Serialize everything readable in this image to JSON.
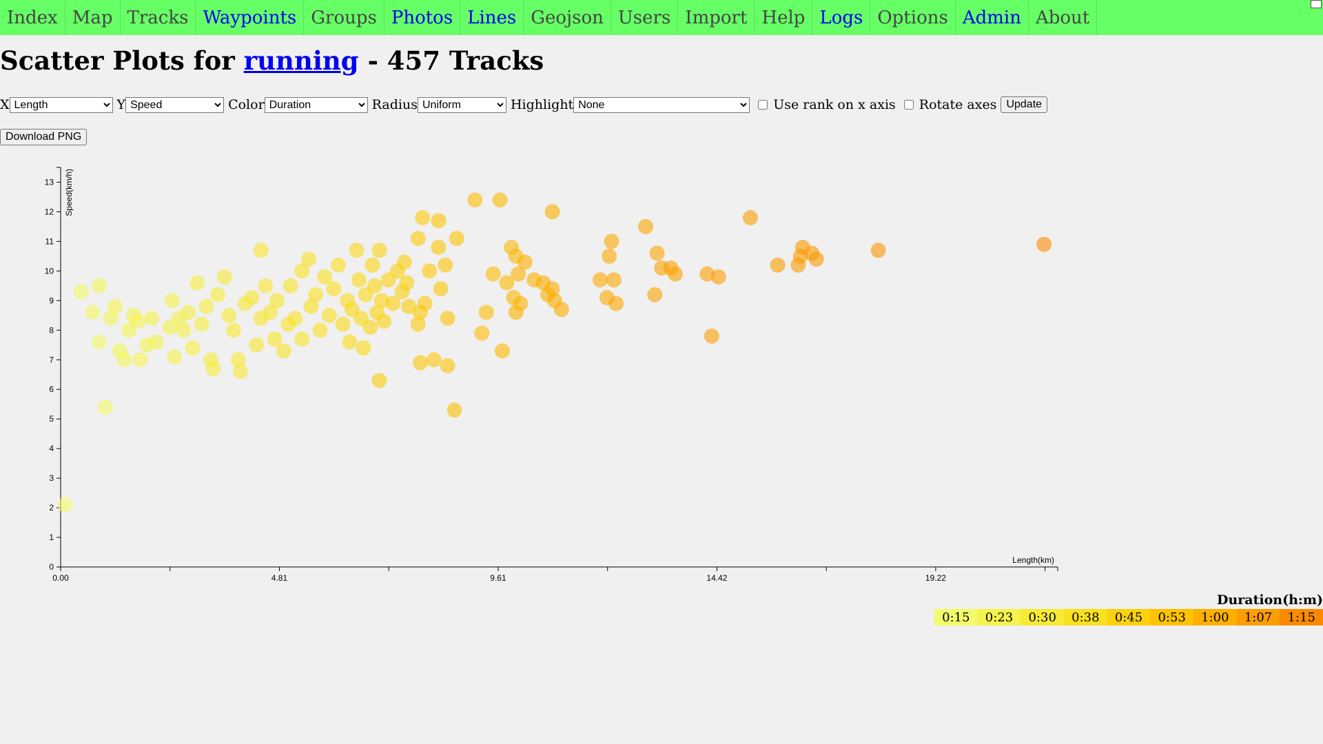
{
  "nav": {
    "items": [
      {
        "label": "Index",
        "link": false
      },
      {
        "label": "Map",
        "link": false
      },
      {
        "label": "Tracks",
        "link": false
      },
      {
        "label": "Waypoints",
        "link": true
      },
      {
        "label": "Groups",
        "link": false
      },
      {
        "label": "Photos",
        "link": true
      },
      {
        "label": "Lines",
        "link": true
      },
      {
        "label": "Geojson",
        "link": false
      },
      {
        "label": "Users",
        "link": false
      },
      {
        "label": "Import",
        "link": false
      },
      {
        "label": "Help",
        "link": false
      },
      {
        "label": "Logs",
        "link": true
      },
      {
        "label": "Options",
        "link": false
      },
      {
        "label": "Admin",
        "link": true
      },
      {
        "label": "About",
        "link": false
      }
    ]
  },
  "header": {
    "title_prefix": "Scatter Plots for ",
    "title_link": "running",
    "title_suffix": " - 457 Tracks"
  },
  "controls": {
    "x_label": "X",
    "x_value": "Length",
    "y_label": "Y",
    "y_value": "Speed",
    "color_label": "Color",
    "color_value": "Duration",
    "radius_label": "Radius",
    "radius_value": "Uniform",
    "highlight_label": "Highlight",
    "highlight_value": "None",
    "rank_label": "Use rank on x axis",
    "rotate_label": "Rotate axes",
    "update_label": "Update",
    "download_label": "Download PNG"
  },
  "legend": {
    "title": "Duration(h:m)",
    "stops": [
      {
        "label": "0:15",
        "color": "#f3fb6a"
      },
      {
        "label": "0:23",
        "color": "#f5f34e"
      },
      {
        "label": "0:30",
        "color": "#f7ea33"
      },
      {
        "label": "0:38",
        "color": "#fae01f"
      },
      {
        "label": "0:45",
        "color": "#fcd20d"
      },
      {
        "label": "0:53",
        "color": "#fdc202"
      },
      {
        "label": "1:00",
        "color": "#fdb000"
      },
      {
        "label": "1:07",
        "color": "#fc9d00"
      },
      {
        "label": "1:15",
        "color": "#fb8a02"
      }
    ]
  },
  "chart_data": {
    "type": "scatter",
    "xlabel": "Length(km)",
    "ylabel": "Speed(km/h)",
    "xlim": [
      0,
      21.9
    ],
    "ylim": [
      0,
      13.5
    ],
    "x_ticks": [
      "0.00",
      "4.81",
      "9.61",
      "14.42",
      "19.22"
    ],
    "y_ticks": [
      0,
      1,
      2,
      3,
      4,
      5,
      6,
      7,
      8,
      9,
      10,
      11,
      12,
      13
    ],
    "color_by": "Duration",
    "duration_range_min": [
      15,
      75
    ],
    "points": [
      {
        "x": 0.1,
        "y": 2.1,
        "d": 15
      },
      {
        "x": 0.45,
        "y": 9.3,
        "d": 18
      },
      {
        "x": 0.7,
        "y": 8.6,
        "d": 18
      },
      {
        "x": 0.85,
        "y": 9.5,
        "d": 20
      },
      {
        "x": 0.85,
        "y": 7.6,
        "d": 17
      },
      {
        "x": 0.98,
        "y": 5.4,
        "d": 18
      },
      {
        "x": 1.1,
        "y": 8.4,
        "d": 20
      },
      {
        "x": 1.2,
        "y": 8.8,
        "d": 22
      },
      {
        "x": 1.3,
        "y": 7.3,
        "d": 20
      },
      {
        "x": 1.4,
        "y": 7.0,
        "d": 20
      },
      {
        "x": 1.5,
        "y": 8.0,
        "d": 21
      },
      {
        "x": 1.6,
        "y": 8.5,
        "d": 22
      },
      {
        "x": 1.7,
        "y": 8.3,
        "d": 22
      },
      {
        "x": 1.75,
        "y": 7.0,
        "d": 21
      },
      {
        "x": 1.9,
        "y": 7.5,
        "d": 22
      },
      {
        "x": 2.0,
        "y": 8.4,
        "d": 23
      },
      {
        "x": 2.1,
        "y": 7.6,
        "d": 23
      },
      {
        "x": 2.4,
        "y": 8.1,
        "d": 24
      },
      {
        "x": 2.45,
        "y": 9.0,
        "d": 24
      },
      {
        "x": 2.5,
        "y": 7.1,
        "d": 24
      },
      {
        "x": 2.6,
        "y": 8.4,
        "d": 25
      },
      {
        "x": 2.7,
        "y": 8.0,
        "d": 25
      },
      {
        "x": 2.8,
        "y": 8.6,
        "d": 26
      },
      {
        "x": 2.9,
        "y": 7.4,
        "d": 26
      },
      {
        "x": 3.0,
        "y": 9.6,
        "d": 27
      },
      {
        "x": 3.1,
        "y": 8.2,
        "d": 27
      },
      {
        "x": 3.2,
        "y": 8.8,
        "d": 28
      },
      {
        "x": 3.3,
        "y": 7.0,
        "d": 28
      },
      {
        "x": 3.35,
        "y": 6.7,
        "d": 28
      },
      {
        "x": 3.45,
        "y": 9.2,
        "d": 29
      },
      {
        "x": 3.6,
        "y": 9.8,
        "d": 30
      },
      {
        "x": 3.7,
        "y": 8.5,
        "d": 30
      },
      {
        "x": 3.8,
        "y": 8.0,
        "d": 30
      },
      {
        "x": 3.9,
        "y": 7.0,
        "d": 30
      },
      {
        "x": 3.95,
        "y": 6.6,
        "d": 30
      },
      {
        "x": 4.05,
        "y": 8.9,
        "d": 31
      },
      {
        "x": 4.2,
        "y": 9.1,
        "d": 32
      },
      {
        "x": 4.3,
        "y": 7.5,
        "d": 32
      },
      {
        "x": 4.4,
        "y": 8.4,
        "d": 33
      },
      {
        "x": 4.4,
        "y": 10.7,
        "d": 33
      },
      {
        "x": 4.5,
        "y": 9.5,
        "d": 33
      },
      {
        "x": 4.6,
        "y": 8.6,
        "d": 33
      },
      {
        "x": 4.7,
        "y": 7.7,
        "d": 34
      },
      {
        "x": 4.75,
        "y": 9.0,
        "d": 34
      },
      {
        "x": 4.9,
        "y": 7.3,
        "d": 35
      },
      {
        "x": 5.0,
        "y": 8.2,
        "d": 35
      },
      {
        "x": 5.05,
        "y": 9.5,
        "d": 35
      },
      {
        "x": 5.15,
        "y": 8.4,
        "d": 36
      },
      {
        "x": 5.3,
        "y": 10.0,
        "d": 36
      },
      {
        "x": 5.3,
        "y": 7.7,
        "d": 36
      },
      {
        "x": 5.45,
        "y": 10.4,
        "d": 37
      },
      {
        "x": 5.5,
        "y": 8.8,
        "d": 37
      },
      {
        "x": 5.6,
        "y": 9.2,
        "d": 37
      },
      {
        "x": 5.7,
        "y": 8.0,
        "d": 38
      },
      {
        "x": 5.8,
        "y": 9.8,
        "d": 38
      },
      {
        "x": 5.9,
        "y": 8.5,
        "d": 38
      },
      {
        "x": 6.0,
        "y": 9.4,
        "d": 39
      },
      {
        "x": 6.1,
        "y": 10.2,
        "d": 39
      },
      {
        "x": 6.2,
        "y": 8.2,
        "d": 40
      },
      {
        "x": 6.3,
        "y": 9.0,
        "d": 40
      },
      {
        "x": 6.35,
        "y": 7.6,
        "d": 40
      },
      {
        "x": 6.4,
        "y": 8.7,
        "d": 41
      },
      {
        "x": 6.5,
        "y": 10.7,
        "d": 41
      },
      {
        "x": 6.55,
        "y": 9.7,
        "d": 41
      },
      {
        "x": 6.6,
        "y": 8.4,
        "d": 42
      },
      {
        "x": 6.65,
        "y": 7.4,
        "d": 42
      },
      {
        "x": 6.7,
        "y": 9.2,
        "d": 42
      },
      {
        "x": 6.8,
        "y": 8.1,
        "d": 43
      },
      {
        "x": 6.85,
        "y": 10.2,
        "d": 43
      },
      {
        "x": 6.9,
        "y": 9.5,
        "d": 43
      },
      {
        "x": 6.95,
        "y": 8.6,
        "d": 44
      },
      {
        "x": 7.0,
        "y": 10.7,
        "d": 44
      },
      {
        "x": 7.05,
        "y": 9.0,
        "d": 44
      },
      {
        "x": 7.1,
        "y": 8.3,
        "d": 45
      },
      {
        "x": 7.2,
        "y": 9.7,
        "d": 45
      },
      {
        "x": 7.3,
        "y": 8.9,
        "d": 46
      },
      {
        "x": 7.4,
        "y": 10.0,
        "d": 46
      },
      {
        "x": 7.5,
        "y": 9.3,
        "d": 46
      },
      {
        "x": 7.55,
        "y": 10.3,
        "d": 47
      },
      {
        "x": 7.0,
        "y": 6.3,
        "d": 48
      },
      {
        "x": 7.6,
        "y": 9.6,
        "d": 47
      },
      {
        "x": 7.65,
        "y": 8.8,
        "d": 48
      },
      {
        "x": 7.85,
        "y": 8.2,
        "d": 48
      },
      {
        "x": 7.9,
        "y": 8.6,
        "d": 49
      },
      {
        "x": 7.95,
        "y": 11.8,
        "d": 49
      },
      {
        "x": 7.85,
        "y": 11.1,
        "d": 49
      },
      {
        "x": 7.9,
        "y": 6.9,
        "d": 50
      },
      {
        "x": 8.0,
        "y": 8.9,
        "d": 50
      },
      {
        "x": 8.1,
        "y": 10.0,
        "d": 50
      },
      {
        "x": 8.2,
        "y": 7.0,
        "d": 50
      },
      {
        "x": 8.3,
        "y": 11.7,
        "d": 51
      },
      {
        "x": 8.3,
        "y": 10.8,
        "d": 51
      },
      {
        "x": 8.35,
        "y": 9.4,
        "d": 51
      },
      {
        "x": 8.45,
        "y": 10.2,
        "d": 52
      },
      {
        "x": 8.5,
        "y": 8.4,
        "d": 52
      },
      {
        "x": 8.5,
        "y": 6.8,
        "d": 52
      },
      {
        "x": 8.7,
        "y": 11.1,
        "d": 53
      },
      {
        "x": 8.65,
        "y": 5.3,
        "d": 54
      },
      {
        "x": 9.1,
        "y": 12.4,
        "d": 54
      },
      {
        "x": 9.25,
        "y": 7.9,
        "d": 55
      },
      {
        "x": 9.35,
        "y": 8.6,
        "d": 55
      },
      {
        "x": 9.5,
        "y": 9.9,
        "d": 56
      },
      {
        "x": 9.65,
        "y": 12.4,
        "d": 56
      },
      {
        "x": 9.7,
        "y": 7.3,
        "d": 57
      },
      {
        "x": 9.8,
        "y": 9.6,
        "d": 57
      },
      {
        "x": 9.9,
        "y": 10.8,
        "d": 58
      },
      {
        "x": 9.95,
        "y": 9.1,
        "d": 58
      },
      {
        "x": 10.0,
        "y": 10.5,
        "d": 58
      },
      {
        "x": 10.0,
        "y": 8.6,
        "d": 59
      },
      {
        "x": 10.05,
        "y": 9.9,
        "d": 59
      },
      {
        "x": 10.1,
        "y": 8.9,
        "d": 59
      },
      {
        "x": 10.2,
        "y": 10.3,
        "d": 60
      },
      {
        "x": 10.4,
        "y": 9.7,
        "d": 60
      },
      {
        "x": 10.6,
        "y": 9.6,
        "d": 61
      },
      {
        "x": 10.7,
        "y": 9.2,
        "d": 61
      },
      {
        "x": 10.8,
        "y": 9.4,
        "d": 61
      },
      {
        "x": 10.85,
        "y": 9.0,
        "d": 62
      },
      {
        "x": 10.8,
        "y": 12.0,
        "d": 62
      },
      {
        "x": 11.0,
        "y": 8.7,
        "d": 62
      },
      {
        "x": 11.85,
        "y": 9.7,
        "d": 63
      },
      {
        "x": 12.0,
        "y": 9.1,
        "d": 63
      },
      {
        "x": 12.05,
        "y": 10.5,
        "d": 63
      },
      {
        "x": 12.1,
        "y": 11.0,
        "d": 64
      },
      {
        "x": 12.15,
        "y": 9.7,
        "d": 64
      },
      {
        "x": 12.2,
        "y": 8.9,
        "d": 64
      },
      {
        "x": 12.85,
        "y": 11.5,
        "d": 65
      },
      {
        "x": 13.1,
        "y": 10.6,
        "d": 65
      },
      {
        "x": 13.05,
        "y": 9.2,
        "d": 65
      },
      {
        "x": 13.2,
        "y": 10.1,
        "d": 66
      },
      {
        "x": 13.4,
        "y": 10.1,
        "d": 66
      },
      {
        "x": 13.5,
        "y": 9.9,
        "d": 66
      },
      {
        "x": 14.2,
        "y": 9.9,
        "d": 67
      },
      {
        "x": 14.3,
        "y": 7.8,
        "d": 67
      },
      {
        "x": 14.45,
        "y": 9.8,
        "d": 67
      },
      {
        "x": 15.15,
        "y": 11.8,
        "d": 68
      },
      {
        "x": 15.75,
        "y": 10.2,
        "d": 68
      },
      {
        "x": 16.2,
        "y": 10.2,
        "d": 69
      },
      {
        "x": 16.25,
        "y": 10.5,
        "d": 69
      },
      {
        "x": 16.3,
        "y": 10.8,
        "d": 69
      },
      {
        "x": 16.5,
        "y": 10.6,
        "d": 70
      },
      {
        "x": 16.6,
        "y": 10.4,
        "d": 70
      },
      {
        "x": 17.96,
        "y": 10.7,
        "d": 71
      },
      {
        "x": 21.6,
        "y": 10.9,
        "d": 75
      }
    ]
  }
}
